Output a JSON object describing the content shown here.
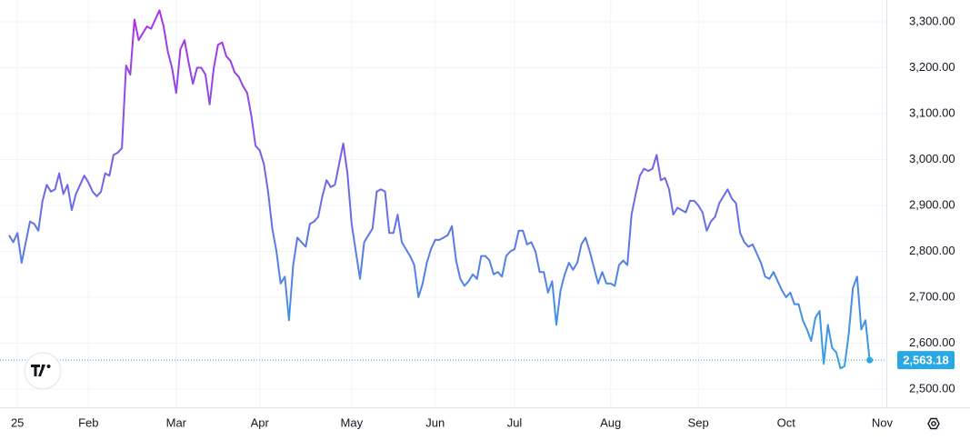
{
  "chart_data": {
    "type": "line",
    "values": [
      2835,
      2820,
      2840,
      2775,
      2820,
      2865,
      2860,
      2845,
      2910,
      2945,
      2930,
      2935,
      2970,
      2925,
      2945,
      2890,
      2925,
      2945,
      2965,
      2950,
      2930,
      2920,
      2930,
      2970,
      2965,
      3010,
      3015,
      3025,
      3205,
      3185,
      3305,
      3260,
      3275,
      3290,
      3285,
      3305,
      3325,
      3290,
      3235,
      3200,
      3145,
      3240,
      3260,
      3210,
      3165,
      3200,
      3200,
      3185,
      3120,
      3200,
      3250,
      3255,
      3225,
      3215,
      3190,
      3180,
      3160,
      3145,
      3095,
      3030,
      3020,
      2990,
      2930,
      2850,
      2800,
      2730,
      2745,
      2650,
      2770,
      2830,
      2820,
      2810,
      2860,
      2865,
      2875,
      2920,
      2955,
      2940,
      2945,
      2990,
      3035,
      2970,
      2860,
      2800,
      2740,
      2820,
      2835,
      2850,
      2930,
      2935,
      2930,
      2840,
      2840,
      2880,
      2820,
      2805,
      2790,
      2770,
      2700,
      2730,
      2775,
      2805,
      2825,
      2825,
      2830,
      2835,
      2855,
      2780,
      2740,
      2725,
      2735,
      2750,
      2740,
      2790,
      2790,
      2780,
      2750,
      2755,
      2745,
      2790,
      2800,
      2805,
      2845,
      2845,
      2815,
      2820,
      2800,
      2755,
      2755,
      2710,
      2735,
      2640,
      2715,
      2750,
      2775,
      2760,
      2775,
      2815,
      2830,
      2800,
      2765,
      2730,
      2755,
      2730,
      2730,
      2725,
      2770,
      2780,
      2770,
      2880,
      2925,
      2965,
      2980,
      2975,
      2980,
      3010,
      2955,
      2960,
      2935,
      2880,
      2895,
      2890,
      2885,
      2910,
      2910,
      2900,
      2885,
      2845,
      2865,
      2875,
      2905,
      2920,
      2935,
      2915,
      2905,
      2840,
      2820,
      2810,
      2815,
      2795,
      2775,
      2745,
      2740,
      2755,
      2735,
      2715,
      2700,
      2710,
      2685,
      2685,
      2650,
      2630,
      2605,
      2655,
      2670,
      2555,
      2640,
      2590,
      2580,
      2545,
      2550,
      2620,
      2720,
      2745,
      2630,
      2650,
      2563.18
    ],
    "gradient": [
      "#a832e8",
      "#2aa8e4"
    ],
    "xlim": [
      0,
      210
    ],
    "xticks": [
      {
        "value": 2,
        "label": "25"
      },
      {
        "value": 19,
        "label": "Feb"
      },
      {
        "value": 40,
        "label": "Mar"
      },
      {
        "value": 60,
        "label": "Apr"
      },
      {
        "value": 82,
        "label": "May"
      },
      {
        "value": 102,
        "label": "Jun"
      },
      {
        "value": 121,
        "label": "Jul"
      },
      {
        "value": 144,
        "label": "Aug"
      },
      {
        "value": 165,
        "label": "Sep"
      },
      {
        "value": 186,
        "label": "Oct"
      },
      {
        "value": 209,
        "label": "Nov"
      }
    ],
    "ylim": [
      2460,
      3345
    ],
    "yticks": [
      {
        "value": 2500,
        "label": "2,500.00"
      },
      {
        "value": 2600,
        "label": "2,600.00"
      },
      {
        "value": 2700,
        "label": "2,700.00"
      },
      {
        "value": 2800,
        "label": "2,800.00"
      },
      {
        "value": 2900,
        "label": "2,900.00"
      },
      {
        "value": 3000,
        "label": "3,000.00"
      },
      {
        "value": 3100,
        "label": "3,100.00"
      },
      {
        "value": 3200,
        "label": "3,200.00"
      },
      {
        "value": 3300,
        "label": "3,300.00"
      }
    ],
    "last_price": {
      "value": 2563.18,
      "label": "2,563.18",
      "color": "#2aa8e4"
    },
    "grid": true
  }
}
